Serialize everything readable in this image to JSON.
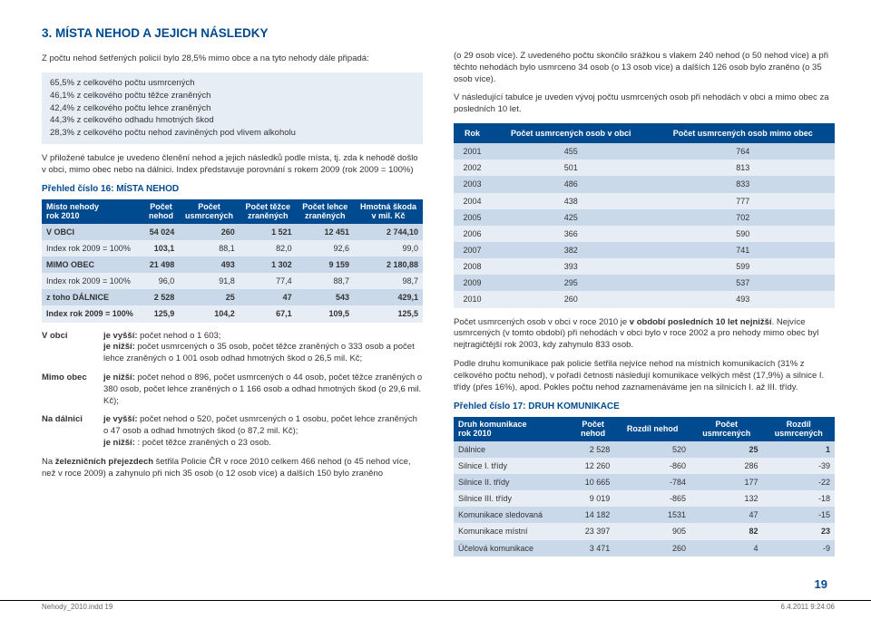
{
  "heading": "3. MÍSTA NEHOD A JEJICH NÁSLEDKY",
  "intro": "Z počtu nehod šetřených policií bylo 28,5% mimo obce a na tyto nehody dále připadá:",
  "percent_lines": [
    "65,5% z celkového počtu usmrcených",
    "46,1% z celkového počtu těžce zraněných",
    "42,4% z celkového počtu lehce zraněných",
    "44,3% z celkového odhadu hmotných škod",
    "28,3% z celkového počtu nehod zaviněných pod vlivem alkoholu"
  ],
  "para_after_box": "V přiložené tabulce je uvedeno členění nehod a jejich následků podle místa, tj. zda k nehodě došlo v obci, mimo obec nebo na dálnici. Index představuje porovnání s rokem 2009 (rok 2009 = 100%)",
  "t16_title": "Přehled číslo 16: MÍSTA NEHOD",
  "t16_headers": [
    "Místo nehody\nrok 2010",
    "Počet\nnehod",
    "Počet\nusmrcených",
    "Počet těžce\nzraněných",
    "Počet lehce\nzraněných",
    "Hmotná škoda\nv mil. Kč"
  ],
  "t16_rows": [
    {
      "cls": "row-dark",
      "cells": [
        "V OBCI",
        "54 024",
        "260",
        "1 521",
        "12 451",
        "2 744,10"
      ]
    },
    {
      "cls": "row-light",
      "cells": [
        "Index rok 2009 = 100%",
        "103,1",
        "88,1",
        "82,0",
        "92,6",
        "99,0"
      ],
      "bold_idx": 1
    },
    {
      "cls": "row-dark",
      "cells": [
        "MIMO OBEC",
        "21 498",
        "493",
        "1 302",
        "9 159",
        "2 180,88"
      ]
    },
    {
      "cls": "row-light",
      "cells": [
        "Index rok 2009 = 100%",
        "96,0",
        "91,8",
        "77,4",
        "88,7",
        "98,7"
      ]
    },
    {
      "cls": "row-dark",
      "cells": [
        "z toho DÁLNICE",
        "2 528",
        "25",
        "47",
        "543",
        "429,1"
      ]
    },
    {
      "cls": "row-light",
      "cells": [
        "Index rok 2009 = 100%",
        "125,9",
        "104,2",
        "67,1",
        "109,5",
        "125,5"
      ],
      "bold_all": true
    }
  ],
  "defs": [
    {
      "k": "V obci",
      "pre": "je vyšší:",
      "v": " počet nehod o 1 603;",
      "pre2": "je nižší:",
      "v2": " počet usmrcených o 35 osob, počet těžce zraněných o 333 osob a počet lehce zraněných o 1 001 osob odhad hmotných škod o 26,5 mil. Kč;"
    },
    {
      "k": "Mimo obec",
      "pre": "je nižší:",
      "v": " počet nehod o 896, počet usmrcených o 44 osob, počet těžce zraněných o 380 osob, počet lehce zraněných o 1 166 osob a odhad hmotných škod (o 29,6 mil. Kč);"
    },
    {
      "k": "Na dálnici",
      "pre": "je vyšší:",
      "v": " počet nehod o 520, počet usmrcených o 1 osobu, počet lehce zraněných o 47 osob a odhad hmotných škod (o 87,2 mil. Kč);",
      "pre2": "je nižší:",
      "v2": " : počet těžce zraněných o 23 osob."
    }
  ],
  "rail_para": "Na železničních přejezdech šetřila Policie ČR v roce 2010 celkem 466 nehod (o 45 nehod více, než v roce 2009) a zahynulo při nich 35 osob (o 12 osob více) a dalších 150 bylo zraněno",
  "right_p1": "(o 29 osob více). Z uvedeného počtu skončilo srážkou s vlakem 240 nehod (o 50 nehod více) a při těchto nehodách bylo usmrceno 34 osob (o 13 osob více) a dalších 126 osob bylo zraněno (o 35 osob více).",
  "right_p2": "V následující tabulce je uveden vývoj počtu usmrcených osob při nehodách v obci a mimo obec za posledních 10 let.",
  "years_headers": [
    "Rok",
    "Počet usmrcených osob v obci",
    "Počet usmrcených osob mimo obec"
  ],
  "years_rows": [
    [
      "2001",
      "455",
      "764"
    ],
    [
      "2002",
      "501",
      "813"
    ],
    [
      "2003",
      "486",
      "833"
    ],
    [
      "2004",
      "438",
      "777"
    ],
    [
      "2005",
      "425",
      "702"
    ],
    [
      "2006",
      "366",
      "590"
    ],
    [
      "2007",
      "382",
      "741"
    ],
    [
      "2008",
      "393",
      "599"
    ],
    [
      "2009",
      "295",
      "537"
    ],
    [
      "2010",
      "260",
      "493"
    ]
  ],
  "right_p3_before": "Počet usmrcených osob v obci v roce 2010 je ",
  "right_p3_bold": "v období posledních 10 let nejnižší",
  "right_p3_after": ". Nejvíce usmrcených (v tomto období) při nehodách v obci bylo v roce 2002 a pro nehody mimo obec byl nejtragičtější rok 2003, kdy zahynulo 833 osob.",
  "right_p4": "Podle druhu komunikace pak policie šetřila nejvíce nehod na místních komunikacích (31% z celkového počtu nehod), v pořadí četnosti následují komunikace velkých měst (17,9%) a silnice I. třídy (přes 16%), apod. Pokles počtu nehod zaznamenáváme jen na silnicích I. až III. třídy.",
  "t17_title": "Přehled číslo 17: DRUH KOMUNIKACE",
  "t17_headers": [
    "Druh komunikace\nrok 2010",
    "Počet\nnehod",
    "Rozdíl nehod",
    "Počet\nusmrcených",
    "Rozdíl\nusmrcených"
  ],
  "t17_rows": [
    [
      "Dálnice",
      "2 528",
      "520",
      "25",
      "1"
    ],
    [
      "Silnice I. třídy",
      "12 260",
      "-860",
      "286",
      "-39"
    ],
    [
      "Silnice II. třídy",
      "10 665",
      "-784",
      "177",
      "-22"
    ],
    [
      "Silnice III. třídy",
      "9 019",
      "-865",
      "132",
      "-18"
    ],
    [
      "Komunikace sledovaná",
      "14 182",
      "1531",
      "47",
      "-15"
    ],
    [
      "Komunikace místní",
      "23 397",
      "905",
      "82",
      "23"
    ],
    [
      "Účelová komunikace",
      "3 471",
      "260",
      "4",
      "-9"
    ]
  ],
  "pagenum": "19",
  "footer_left": "Nehody_2010.indd   19",
  "footer_right": "6.4.2011   9:24:06"
}
